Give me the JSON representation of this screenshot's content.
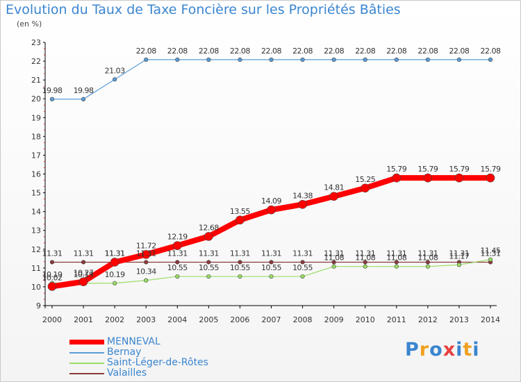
{
  "chart_data": {
    "type": "line",
    "title": "Evolution du Taux de Taxe Foncière sur les Propriétés Bâties",
    "subtitle": "(en %)",
    "x": [
      "2000",
      "2001",
      "2002",
      "2003",
      "2004",
      "2005",
      "2006",
      "2007",
      "2008",
      "2009",
      "2010",
      "2011",
      "2012",
      "2013",
      "2014"
    ],
    "ylim": [
      9,
      23
    ],
    "yticks": [
      "9",
      "10",
      "11",
      "12",
      "13",
      "14",
      "15",
      "16",
      "17",
      "18",
      "19",
      "20",
      "21",
      "22",
      "23"
    ],
    "grid": false,
    "series": [
      {
        "name": "MENNEVAL",
        "color": "#ff0000",
        "values": [
          10.02,
          10.27,
          11.31,
          11.72,
          12.19,
          12.68,
          13.55,
          14.09,
          14.38,
          14.81,
          15.25,
          15.79,
          15.79,
          15.79,
          15.79
        ],
        "labels": [
          "10.02",
          "10.27",
          "11.31",
          "11.72",
          "12.19",
          "12.68",
          "13.55",
          "14.09",
          "14.38",
          "14.81",
          "15.25",
          "15.79",
          "15.79",
          "15.79",
          "15.79"
        ]
      },
      {
        "name": "Bernay",
        "color": "#5b9bd5",
        "values": [
          19.98,
          19.98,
          21.03,
          22.08,
          22.08,
          22.08,
          22.08,
          22.08,
          22.08,
          22.08,
          22.08,
          22.08,
          22.08,
          22.08,
          22.08
        ],
        "labels": [
          "19.98",
          "19.98",
          "21.03",
          "22.08",
          "22.08",
          "22.08",
          "22.08",
          "22.08",
          "22.08",
          "22.08",
          "22.08",
          "22.08",
          "22.08",
          "22.08",
          "22.08"
        ]
      },
      {
        "name": "Saint-Léger-de-Rôtes",
        "color": "#99dd66",
        "values": [
          10.19,
          10.19,
          10.19,
          10.34,
          10.55,
          10.55,
          10.55,
          10.55,
          10.55,
          11.08,
          11.08,
          11.08,
          11.08,
          11.17,
          11.45
        ],
        "labels": [
          "10.19",
          "10.19",
          "10.19",
          "10.34",
          "10.55",
          "10.55",
          "10.55",
          "10.55",
          "10.55",
          "11.08",
          "11.08",
          "11.08",
          "11.08",
          "11.17",
          "11.45"
        ]
      },
      {
        "name": "Valailles",
        "color": "#8b3a3a",
        "values": [
          11.31,
          11.31,
          11.31,
          11.31,
          11.31,
          11.31,
          11.31,
          11.31,
          11.31,
          11.31,
          11.31,
          11.31,
          11.31,
          11.31,
          11.31
        ],
        "labels": [
          "11.31",
          "11.31",
          "11.31",
          "11.31",
          "11.31",
          "11.31",
          "11.31",
          "11.31",
          "11.31",
          "11.31",
          "11.31",
          "11.31",
          "11.31",
          "11.31",
          "11.31"
        ]
      }
    ]
  },
  "logo": {
    "letters": [
      "P",
      "r",
      "o",
      "x",
      "i",
      "t",
      "i"
    ],
    "colors": [
      "#3a85cf",
      "#f0a020",
      "#3a85cf",
      "#e84040",
      "#3a85cf",
      "#f0a020",
      "#3a85cf"
    ]
  }
}
